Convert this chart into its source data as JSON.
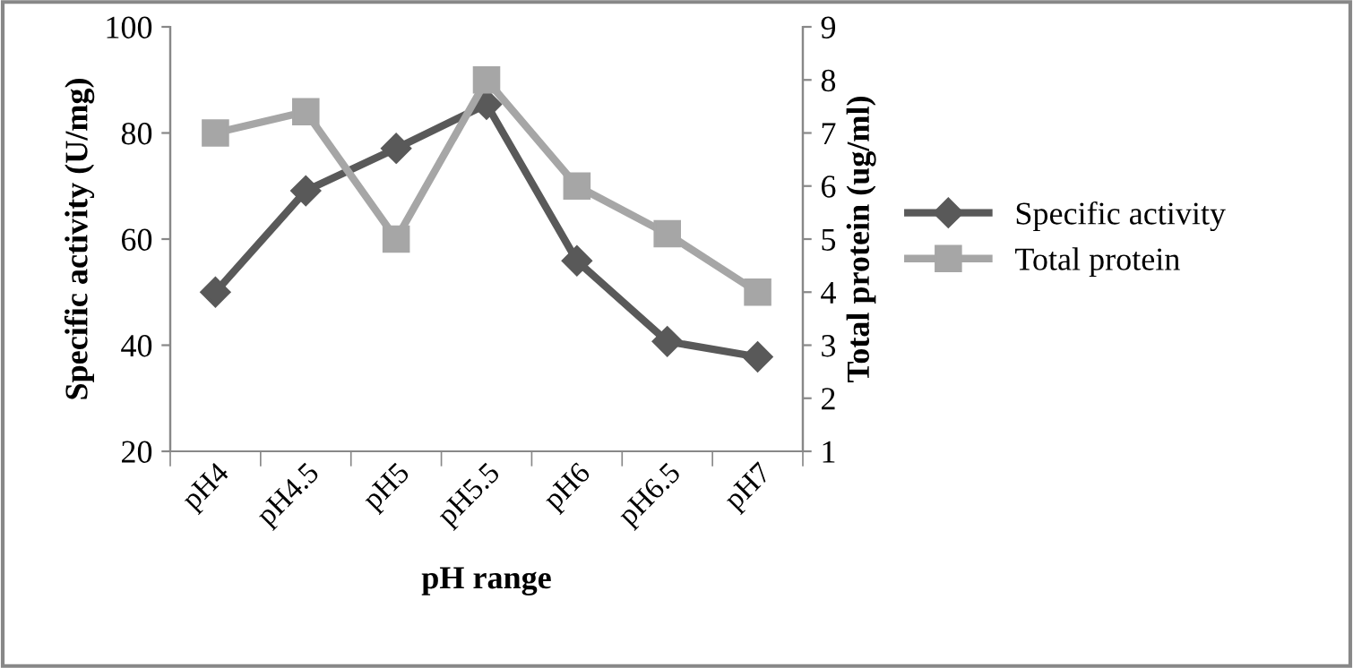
{
  "chart_data": {
    "type": "line",
    "xlabel": "pH range",
    "ylabel": "Specific activity (U/mg)",
    "y2label": "Total protein (ug/ml)",
    "categories": [
      "pH4",
      "pH4.5",
      "pH5",
      "pH5.5",
      "pH6",
      "pH6.5",
      "pH7"
    ],
    "series": [
      {
        "name": "Specific activity",
        "color": "#595959",
        "marker": "diamond",
        "values": [
          50,
          69.1,
          77.1,
          85.4,
          55.9,
          40.7,
          37.8
        ]
      },
      {
        "name": "Total protein",
        "color": "#a6a6a6",
        "marker": "square",
        "axis": "y2",
        "values": [
          7,
          7.4,
          5,
          8,
          6,
          5.1,
          4
        ]
      }
    ],
    "ylim": [
      20,
      100
    ],
    "yticks": [
      20,
      40,
      60,
      80,
      100
    ],
    "y2lim": [
      1,
      9
    ],
    "y2ticks": [
      1,
      2,
      3,
      4,
      5,
      6,
      7,
      8,
      9
    ],
    "grid": false,
    "legend": "right",
    "line_style": "solid"
  }
}
